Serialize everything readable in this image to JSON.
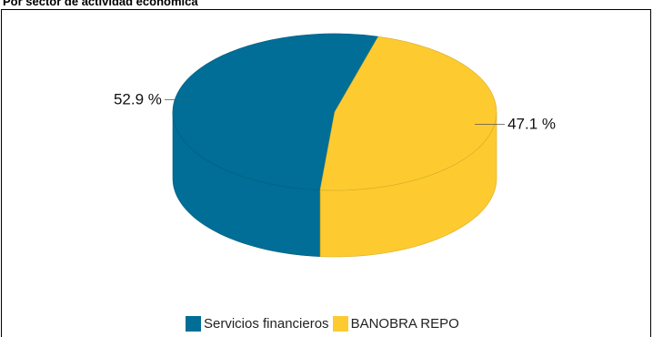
{
  "heading": "Por sector de actividad económica",
  "chart_data": {
    "type": "pie",
    "title": "",
    "categories": [
      "Servicios financieros",
      "BANOBRA REPO"
    ],
    "values": [
      52.9,
      47.1
    ],
    "labels": [
      "52.9 %",
      "47.1 %"
    ],
    "colors": [
      "#006E96",
      "#FDCB30"
    ],
    "legend": "bottom",
    "style": "3d"
  }
}
